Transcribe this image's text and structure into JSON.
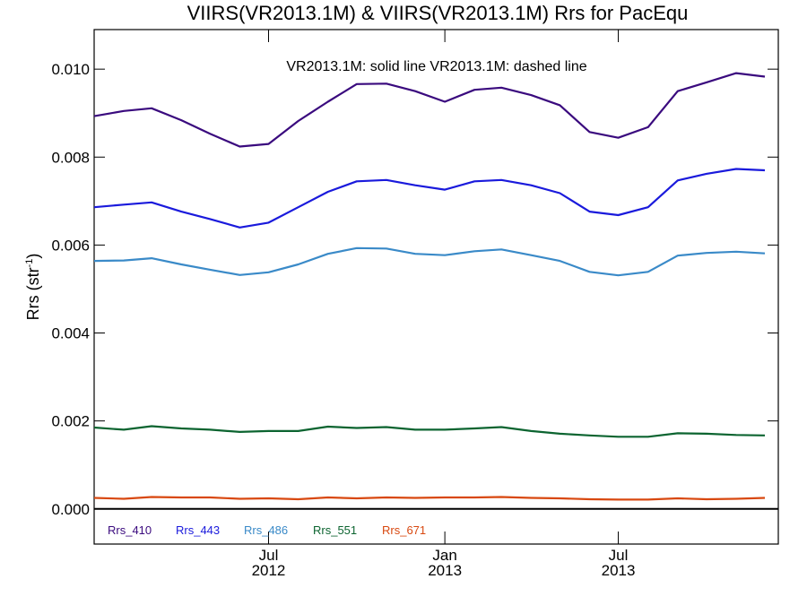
{
  "chart_data": {
    "type": "line",
    "title": "VIIRS(VR2013.1M) & VIIRS(VR2013.1M)  Rrs for PacEqu",
    "annotation": "VR2013.1M: solid line   VR2013.1M: dashed line",
    "ylabel": "Rrs (str",
    "ylabel_sup": "-1",
    "ylabel_close": ")",
    "ylim": [
      -0.0008,
      0.0109
    ],
    "yticks": [
      {
        "value": 0.0,
        "label": "0.000"
      },
      {
        "value": 0.002,
        "label": "0.002"
      },
      {
        "value": 0.004,
        "label": "0.004"
      },
      {
        "value": 0.006,
        "label": "0.006"
      },
      {
        "value": 0.008,
        "label": "0.008"
      },
      {
        "value": 0.01,
        "label": "0.010"
      }
    ],
    "xlim": [
      "2012-01-01",
      "2013-12-15"
    ],
    "xticks": [
      {
        "date": "2012-07-01",
        "line1": "Jul",
        "line2": "2012"
      },
      {
        "date": "2013-01-01",
        "line1": "Jan",
        "line2": "2013"
      },
      {
        "date": "2013-07-01",
        "line1": "Jul",
        "line2": "2013"
      }
    ],
    "x": [
      "2012-01-01",
      "2012-02-01",
      "2012-03-01",
      "2012-04-01",
      "2012-05-01",
      "2012-06-01",
      "2012-07-01",
      "2012-08-01",
      "2012-09-01",
      "2012-10-01",
      "2012-11-01",
      "2012-12-01",
      "2013-01-01",
      "2013-02-01",
      "2013-03-01",
      "2013-04-01",
      "2013-05-01",
      "2013-06-01",
      "2013-07-01",
      "2013-08-01",
      "2013-09-01",
      "2013-10-01",
      "2013-11-01",
      "2013-12-01"
    ],
    "series": [
      {
        "name": "Rrs_410",
        "color": "#3a0a7e",
        "values": [
          0.00893,
          0.00905,
          0.00911,
          0.00884,
          0.00853,
          0.00824,
          0.0083,
          0.00882,
          0.00926,
          0.00966,
          0.00967,
          0.0095,
          0.00926,
          0.00953,
          0.00958,
          0.00941,
          0.00918,
          0.00857,
          0.00844,
          0.00868,
          0.0095,
          0.0097,
          0.00991,
          0.00983
        ]
      },
      {
        "name": "Rrs_443",
        "color": "#1a1adc",
        "values": [
          0.00686,
          0.00692,
          0.00697,
          0.00676,
          0.00659,
          0.0064,
          0.00651,
          0.00686,
          0.00721,
          0.00745,
          0.00748,
          0.00736,
          0.00726,
          0.00745,
          0.00748,
          0.00736,
          0.00718,
          0.00676,
          0.00668,
          0.00686,
          0.00747,
          0.00762,
          0.00773,
          0.0077
        ]
      },
      {
        "name": "Rrs_486",
        "color": "#3a8ac8",
        "values": [
          0.00564,
          0.00565,
          0.0057,
          0.00556,
          0.00544,
          0.00532,
          0.00538,
          0.00556,
          0.0058,
          0.00593,
          0.00592,
          0.0058,
          0.00577,
          0.00586,
          0.0059,
          0.00577,
          0.00564,
          0.00539,
          0.00531,
          0.00539,
          0.00576,
          0.00582,
          0.00585,
          0.00581
        ]
      },
      {
        "name": "Rrs_551",
        "color": "#0c6430",
        "values": [
          0.00185,
          0.0018,
          0.00188,
          0.00183,
          0.0018,
          0.00175,
          0.00177,
          0.00177,
          0.00187,
          0.00184,
          0.00186,
          0.0018,
          0.0018,
          0.00183,
          0.00186,
          0.00177,
          0.00171,
          0.00167,
          0.00164,
          0.00164,
          0.00172,
          0.00171,
          0.00168,
          0.00167
        ]
      },
      {
        "name": "Rrs_671",
        "color": "#d84810",
        "values": [
          0.00025,
          0.00023,
          0.00027,
          0.00026,
          0.00026,
          0.00023,
          0.00024,
          0.00022,
          0.00026,
          0.00024,
          0.00026,
          0.00025,
          0.00026,
          0.00026,
          0.00027,
          0.00025,
          0.00024,
          0.00022,
          0.00021,
          0.00021,
          0.00024,
          0.00022,
          0.00023,
          0.00025
        ]
      }
    ],
    "legend_placement": "bottom-left",
    "grid": false
  }
}
